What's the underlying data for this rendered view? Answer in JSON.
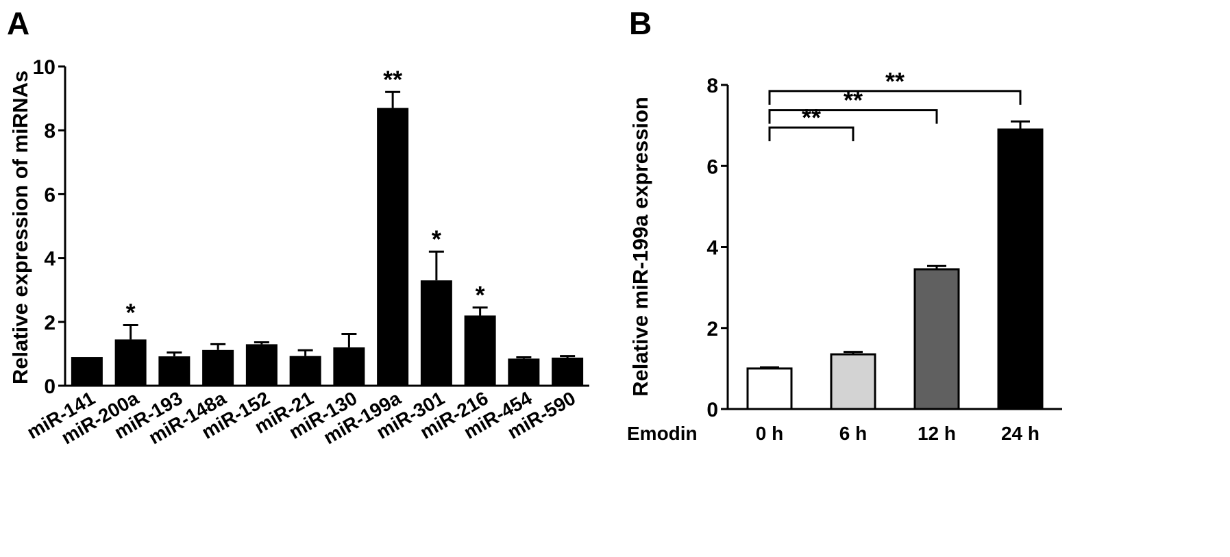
{
  "chart_data": [
    {
      "panel": "A",
      "type": "bar",
      "ylabel": "Relative expression of miRNAs",
      "xlabel": "",
      "ylim": [
        0,
        10
      ],
      "yticks": [
        0,
        2,
        4,
        6,
        8,
        10
      ],
      "grid": false,
      "legend": "none",
      "bar_color": "#000000",
      "categories": [
        "miR-141",
        "miR-200a",
        "miR-193",
        "miR-148a",
        "miR-152",
        "miR-21",
        "miR-130",
        "miR-199a",
        "miR-301",
        "miR-216",
        "miR-454",
        "miR-590"
      ],
      "values": [
        0.9,
        1.45,
        0.92,
        1.12,
        1.3,
        0.93,
        1.2,
        8.7,
        3.3,
        2.2,
        0.85,
        0.88
      ],
      "errors": [
        0.0,
        0.45,
        0.12,
        0.18,
        0.06,
        0.18,
        0.42,
        0.5,
        0.9,
        0.25,
        0.04,
        0.05
      ],
      "significance": [
        "",
        "*",
        "",
        "",
        "",
        "",
        "",
        "**",
        "*",
        "*",
        "",
        ""
      ]
    },
    {
      "panel": "B",
      "type": "bar",
      "ylabel": "Relative miR-199a expression",
      "xlabel": "",
      "x_row_label": "Emodin",
      "ylim": [
        0,
        8
      ],
      "yticks": [
        0,
        2,
        4,
        6,
        8
      ],
      "grid": false,
      "legend": "none",
      "categories": [
        "0 h",
        "6 h",
        "12 h",
        "24 h"
      ],
      "values": [
        1.0,
        1.35,
        3.45,
        6.9
      ],
      "errors": [
        0.03,
        0.06,
        0.08,
        0.2
      ],
      "bar_colors": [
        "#ffffff",
        "#d3d3d3",
        "#606060",
        "#000000"
      ],
      "comparisons": [
        {
          "from": "0 h",
          "to": "6 h",
          "label": "**"
        },
        {
          "from": "0 h",
          "to": "12 h",
          "label": "**"
        },
        {
          "from": "0 h",
          "to": "24 h",
          "label": "**"
        }
      ]
    }
  ]
}
